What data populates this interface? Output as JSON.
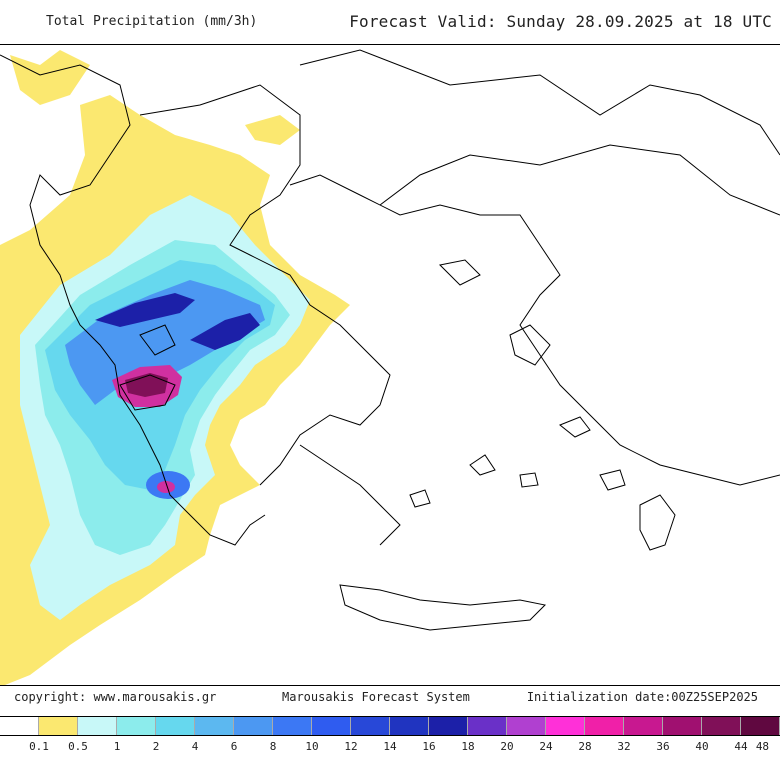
{
  "header": {
    "title": "Total Precipitation (mm/3h)",
    "forecast_valid": "Forecast Valid:  Sunday 28.09.2025 at 18 UTC"
  },
  "footer": {
    "copyright": "copyright: www.marousakis.gr",
    "system": "Marousakis Forecast System",
    "init": "Initialization date:00Z25SEP2025"
  },
  "legend": {
    "ticks": [
      "0.1",
      "0.5",
      "1",
      "2",
      "4",
      "6",
      "8",
      "10",
      "12",
      "14",
      "16",
      "18",
      "20",
      "24",
      "28",
      "32",
      "36",
      "40",
      "44",
      "48"
    ],
    "colors": [
      "#ffffff",
      "#fbe870",
      "#c8f8f8",
      "#8cecec",
      "#66d8ee",
      "#5cb8f0",
      "#4c98f2",
      "#3c78f4",
      "#2f5cf0",
      "#2848d8",
      "#2034c0",
      "#1c20a8",
      "#6a30c8",
      "#b040d0",
      "#ff30d8",
      "#f020a8",
      "#c81890",
      "#a01070",
      "#801058",
      "#600840"
    ]
  },
  "map": {
    "colors": {
      "yellow": "#fbe870",
      "pale_cyan": "#c8f8f8",
      "cyan": "#8cecec",
      "light_blue": "#66d8ee",
      "blue": "#4c98f2",
      "royal_blue": "#3c78f4",
      "dark_blue": "#1c20a8",
      "magenta": "#d030a0",
      "dark_magenta": "#801058"
    },
    "coastline_color": "#000000"
  }
}
